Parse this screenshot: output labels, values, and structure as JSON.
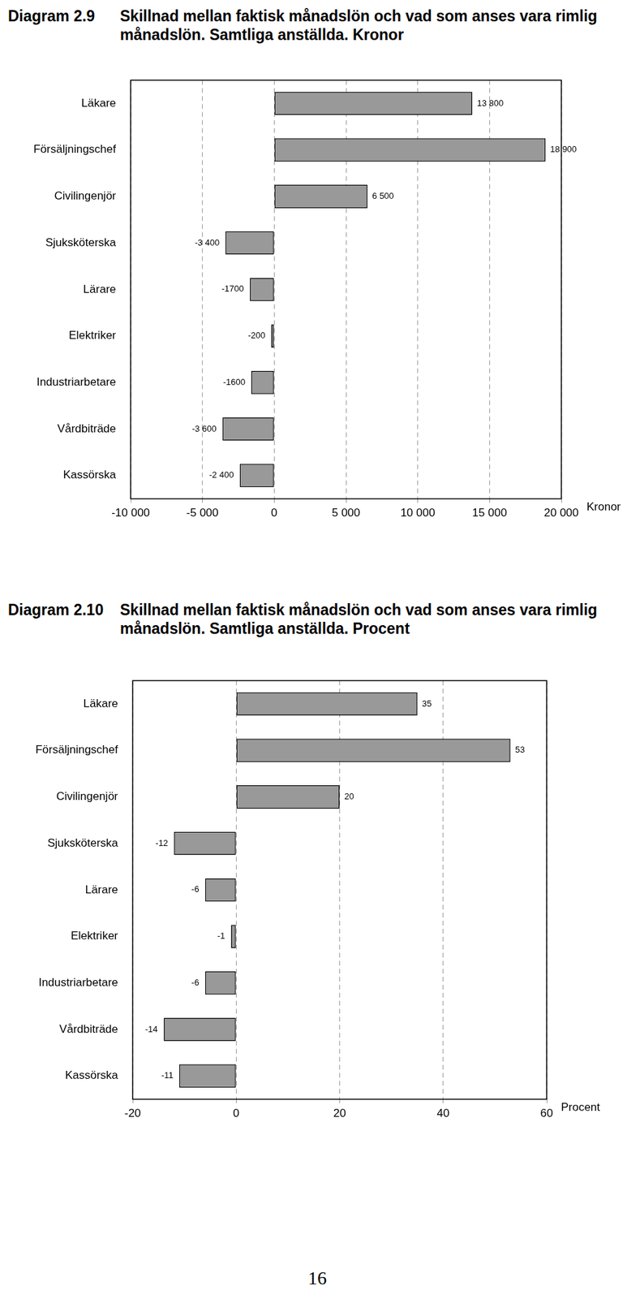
{
  "chart_data": [
    {
      "type": "bar",
      "orientation": "horizontal",
      "title": "Diagram 2.9 Skillnad mellan faktisk månadslön och vad som anses vara rimlig månadslön. Samtliga anställda. Kronor",
      "categories": [
        "Läkare",
        "Försäljningschef",
        "Civilingenjör",
        "Sjuksköterska",
        "Lärare",
        "Elektriker",
        "Industriarbetare",
        "Vårdbiträde",
        "Kassörska"
      ],
      "values": [
        13800,
        18900,
        6500,
        -3400,
        -1700,
        -200,
        -1600,
        -3600,
        -2400
      ],
      "value_labels": [
        "13 800",
        "18 900",
        "6 500",
        "-3 400",
        "-1700",
        "-200",
        "-1600",
        "-3 600",
        "-2 400"
      ],
      "data_labels": true,
      "color": "#999999",
      "x_label": "Kronor",
      "xlim": [
        -10000,
        20000
      ],
      "xticks": [
        {
          "value": -10000,
          "label": "-10 000"
        },
        {
          "value": -5000,
          "label": "-5 000"
        },
        0,
        {
          "value": 5000,
          "label": "5 000"
        },
        {
          "value": 10000,
          "label": "10 000"
        },
        {
          "value": 15000,
          "label": "15 000"
        },
        {
          "value": 20000,
          "label": "20 000"
        }
      ],
      "grid": true
    },
    {
      "type": "bar",
      "orientation": "horizontal",
      "title": "Diagram 2.10 Skillnad mellan faktisk månadslön och vad som anses vara rimlig månadslön. Samtliga anställda. Procent",
      "categories": [
        "Läkare",
        "Försäljningschef",
        "Civilingenjör",
        "Sjuksköterska",
        "Lärare",
        "Elektriker",
        "Industriarbetare",
        "Vårdbiträde",
        "Kassörska"
      ],
      "values": [
        35,
        53,
        20,
        -12,
        -6,
        -1,
        -6,
        -14,
        -11
      ],
      "data_labels": true,
      "color": "#999999",
      "x_label": "Procent",
      "xlim": [
        -20,
        60
      ],
      "xticks": [
        -20,
        0,
        20,
        40,
        60
      ],
      "grid": true
    }
  ],
  "page_number": 16
}
